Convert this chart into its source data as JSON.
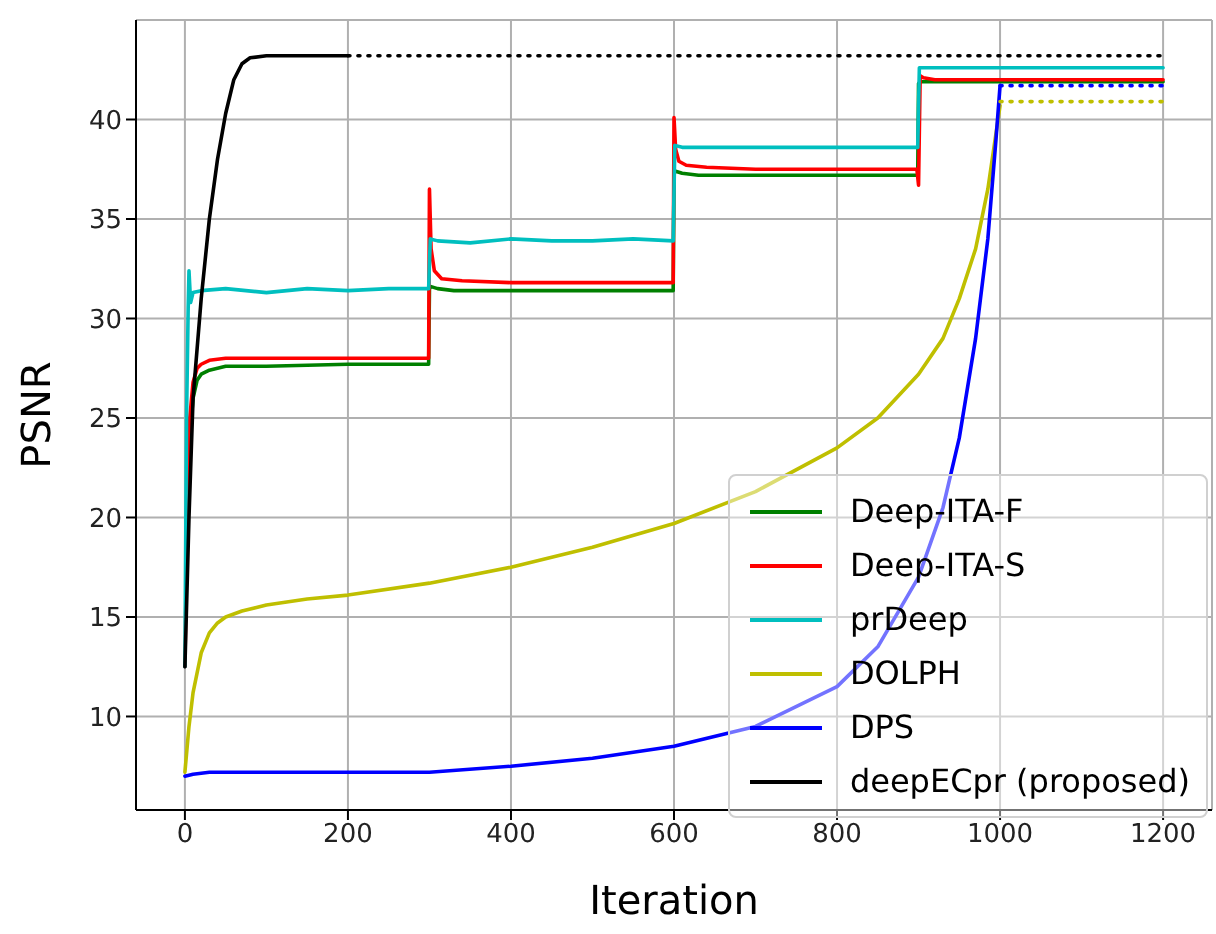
{
  "chart_data": {
    "type": "line",
    "xlabel": "Iteration",
    "ylabel": "PSNR",
    "xlim": [
      -60,
      1260
    ],
    "xticks": [
      0,
      200,
      400,
      600,
      800,
      1000,
      1200
    ],
    "ylim": [
      5.3,
      45.0
    ],
    "yticks": [
      10,
      15,
      20,
      25,
      30,
      35,
      40
    ],
    "grid": true,
    "legend": "bottom right",
    "marker": "none",
    "series": [
      {
        "name": "Deep-ITA-F",
        "color": "#008000",
        "x": [
          6,
          10,
          15,
          20,
          30,
          50,
          100,
          200,
          299,
          300,
          302,
          310,
          330,
          400,
          500,
          599,
          600,
          602,
          610,
          630,
          700,
          800,
          899,
          900,
          902,
          910,
          950,
          1000,
          1100,
          1200
        ],
        "values": [
          24,
          26,
          26.9,
          27.2,
          27.4,
          27.6,
          27.6,
          27.7,
          27.7,
          31.5,
          31.6,
          31.5,
          31.4,
          31.4,
          31.4,
          31.4,
          37.3,
          37.4,
          37.3,
          37.2,
          37.2,
          37.2,
          37.2,
          41.8,
          41.9,
          41.9,
          41.9,
          41.9,
          41.9,
          41.9
        ]
      },
      {
        "name": "Deep-ITA-S",
        "color": "#ff0000",
        "x": [
          0,
          3,
          6,
          10,
          15,
          20,
          30,
          50,
          100,
          200,
          299,
          300,
          302,
          306,
          315,
          340,
          400,
          500,
          599,
          600,
          602,
          606,
          615,
          640,
          700,
          800,
          898,
          900,
          902,
          906,
          920,
          1000,
          1100,
          1200
        ],
        "values": [
          12.5,
          21,
          25,
          26.8,
          27.5,
          27.7,
          27.9,
          28.0,
          28.0,
          28.0,
          28.0,
          36.5,
          33.5,
          32.4,
          32.0,
          31.9,
          31.8,
          31.8,
          31.8,
          40.1,
          38.5,
          37.9,
          37.7,
          37.6,
          37.5,
          37.5,
          37.5,
          36.7,
          42.2,
          42.1,
          42.0,
          42.0,
          42.0,
          42.0
        ]
      },
      {
        "name": "prDeep",
        "color": "#00bfbf",
        "x": [
          0,
          2,
          4,
          5,
          7,
          10,
          20,
          50,
          100,
          150,
          200,
          250,
          299,
          301,
          310,
          350,
          400,
          450,
          500,
          550,
          599,
          601,
          610,
          700,
          800,
          899,
          901,
          910,
          1000,
          1100,
          1200
        ],
        "values": [
          12.5,
          25,
          30.5,
          32.4,
          30.8,
          31.3,
          31.4,
          31.5,
          31.3,
          31.5,
          31.4,
          31.5,
          31.5,
          34.0,
          33.9,
          33.8,
          34.0,
          33.9,
          33.9,
          34.0,
          33.9,
          38.7,
          38.6,
          38.6,
          38.6,
          38.6,
          42.6,
          42.6,
          42.6,
          42.6,
          42.6
        ]
      },
      {
        "name": "DOLPH",
        "color": "#bfbf00",
        "x": [
          0,
          5,
          10,
          20,
          30,
          40,
          50,
          70,
          100,
          150,
          200,
          300,
          400,
          500,
          600,
          700,
          800,
          850,
          900,
          930,
          950,
          970,
          985,
          1000
        ],
        "values": [
          7.2,
          9.5,
          11.2,
          13.2,
          14.2,
          14.7,
          15.0,
          15.3,
          15.6,
          15.9,
          16.1,
          16.7,
          17.5,
          18.5,
          19.7,
          21.3,
          23.5,
          25.0,
          27.2,
          29.0,
          31.0,
          33.5,
          36.5,
          40.7
        ]
      },
      {
        "name": "DPS",
        "color": "#0000ff",
        "x": [
          0,
          10,
          30,
          50,
          100,
          200,
          300,
          400,
          500,
          600,
          700,
          800,
          850,
          900,
          930,
          950,
          970,
          985,
          995,
          1000
        ],
        "values": [
          7.0,
          7.1,
          7.2,
          7.2,
          7.2,
          7.2,
          7.2,
          7.5,
          7.9,
          8.5,
          9.5,
          11.5,
          13.5,
          17.0,
          20.5,
          24.0,
          29.0,
          34.0,
          39.0,
          41.7
        ]
      },
      {
        "name": "deepECpr (proposed)",
        "color": "#000000",
        "x": [
          0,
          5,
          10,
          20,
          30,
          40,
          50,
          60,
          70,
          80,
          100,
          150,
          200
        ],
        "values": [
          12.5,
          20,
          26,
          31,
          35,
          38,
          40.3,
          42.0,
          42.8,
          43.1,
          43.2,
          43.2,
          43.2
        ]
      },
      {
        "color": "#000000",
        "line_style": "dotted",
        "x": [
          200,
          1200
        ],
        "values": [
          43.2,
          43.2
        ]
      },
      {
        "color": "#0000ff",
        "line_style": "dotted",
        "x": [
          1000,
          1200
        ],
        "values": [
          41.7,
          41.7
        ]
      },
      {
        "color": "#bfbf00",
        "line_style": "dotted",
        "x": [
          1000,
          1200
        ],
        "values": [
          40.9,
          40.9
        ]
      }
    ]
  }
}
